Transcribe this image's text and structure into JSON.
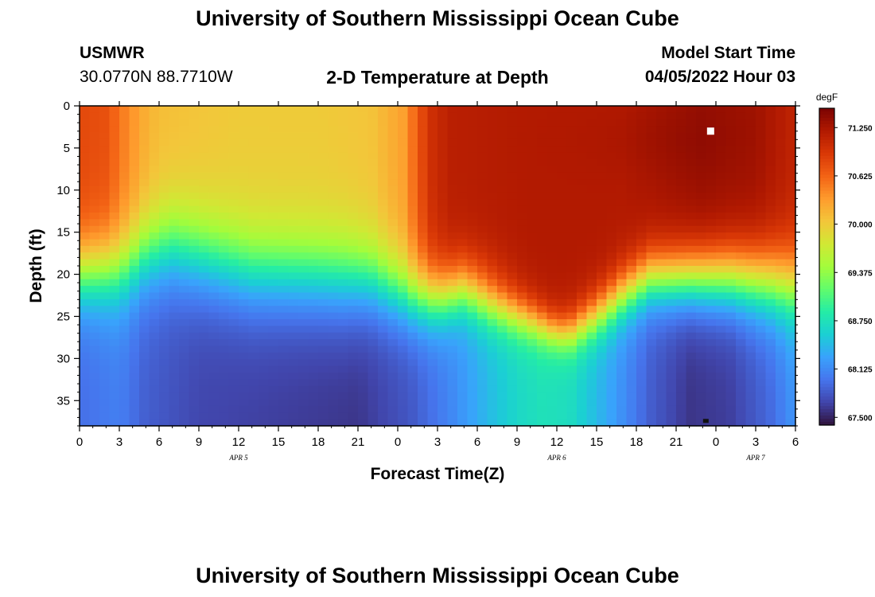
{
  "header": {
    "title": "University of Southern Mississippi Ocean Cube",
    "station": "USMWR",
    "coordinates": "30.0770N  88.7710W",
    "subtitle": "2-D Temperature at Depth",
    "model_start_label": "Model Start Time",
    "model_start_value": "04/05/2022 Hour 03"
  },
  "footer": {
    "title": "University of Southern Mississippi Ocean Cube"
  },
  "chart_data": {
    "type": "heatmap",
    "xlabel": "Forecast Time(Z)",
    "ylabel": "Depth (ft)",
    "x_range_hours": [
      0,
      54
    ],
    "x_ticks": [
      "0",
      "3",
      "6",
      "9",
      "12",
      "15",
      "18",
      "21",
      "0",
      "3",
      "6",
      "9",
      "12",
      "15",
      "18",
      "21",
      "0",
      "3",
      "6"
    ],
    "date_labels": [
      {
        "label": "APR 5",
        "hour": 12
      },
      {
        "label": "APR 6",
        "hour": 36
      },
      {
        "label": "APR 7",
        "hour": 51
      }
    ],
    "y_range_ft": [
      0,
      38
    ],
    "y_ticks": [
      0,
      5,
      10,
      15,
      20,
      25,
      30,
      35
    ],
    "colorbar": {
      "unit": "degF",
      "min": 67.4,
      "max": 71.5,
      "labels": [
        "71.250",
        "70.625",
        "70.000",
        "69.375",
        "68.750",
        "68.125",
        "67.500"
      ],
      "colors": [
        "#30123b",
        "#4145ab",
        "#4675ed",
        "#39a2fc",
        "#1bcfd4",
        "#24eca6",
        "#61fc6c",
        "#a4fc3b",
        "#d1e834",
        "#f3c63a",
        "#fe9b2d",
        "#f36315",
        "#d93806",
        "#b11901",
        "#7a0402"
      ]
    },
    "markers": [
      {
        "color": "#ffffff",
        "hour": 47.6,
        "depth_ft": 3
      },
      {
        "color": "#111111",
        "hour": 47.3,
        "depth_ft": 37.6
      }
    ]
  }
}
